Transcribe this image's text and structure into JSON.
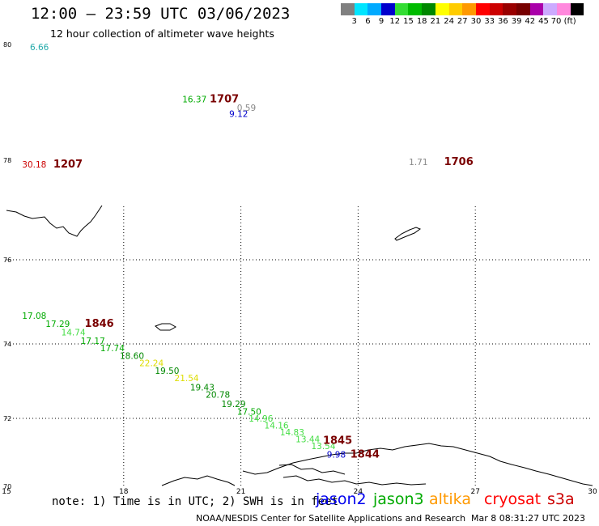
{
  "header": {
    "title": "12:00 — 23:59 UTC 03/06/2023",
    "subtitle": "12 hour collection of altimeter wave heights"
  },
  "legend": {
    "colors": [
      "#808080",
      "#00e5ff",
      "#00aaff",
      "#0000cc",
      "#33dd33",
      "#00bb00",
      "#008800",
      "#ffff00",
      "#ffcc00",
      "#ff9900",
      "#ff0000",
      "#cc0000",
      "#990000",
      "#770000",
      "#aa00aa",
      "#ccaaff",
      "#ff88dd",
      "#000000"
    ],
    "labels": [
      "3",
      "6",
      "9",
      "12",
      "15",
      "18",
      "21",
      "24",
      "27",
      "30",
      "33",
      "36",
      "39",
      "42",
      "45",
      "70 (ft)"
    ]
  },
  "axes": {
    "lon_ticks": [
      "15",
      "18",
      "21",
      "24",
      "27",
      "30"
    ],
    "lat_ticks": [
      "70",
      "72",
      "74",
      "76",
      "78",
      "80"
    ]
  },
  "chart_data": {
    "type": "scatter",
    "points": [
      {
        "lon": 15.6,
        "lat": 79.9,
        "text": "6.66",
        "color": "#22aaaa"
      },
      {
        "lon": 19.5,
        "lat": 79.0,
        "text": "16.37",
        "color": "#00aa00"
      },
      {
        "lon": 20.7,
        "lat": 78.75,
        "text": "9.12",
        "color": "#0000cc"
      },
      {
        "lon": 20.9,
        "lat": 78.85,
        "text": "0.59",
        "color": "#888888"
      },
      {
        "lon": 15.4,
        "lat": 77.85,
        "text": "30.18",
        "color": "#cc0000"
      },
      {
        "lon": 25.3,
        "lat": 77.9,
        "text": "1.71",
        "color": "#888888"
      },
      {
        "lon": 15.4,
        "lat": 74.6,
        "text": "17.08",
        "color": "#00aa00"
      },
      {
        "lon": 16.0,
        "lat": 74.4,
        "text": "17.29",
        "color": "#00aa00"
      },
      {
        "lon": 16.4,
        "lat": 74.2,
        "text": "14.74",
        "color": "#44dd44"
      },
      {
        "lon": 16.9,
        "lat": 74.0,
        "text": "17.17",
        "color": "#00aa00"
      },
      {
        "lon": 17.4,
        "lat": 73.8,
        "text": "17.74",
        "color": "#00aa00"
      },
      {
        "lon": 17.9,
        "lat": 73.6,
        "text": "18.60",
        "color": "#008800"
      },
      {
        "lon": 18.4,
        "lat": 73.4,
        "text": "22.24",
        "color": "#dddd00"
      },
      {
        "lon": 18.8,
        "lat": 73.2,
        "text": "19.50",
        "color": "#008800"
      },
      {
        "lon": 19.3,
        "lat": 73.0,
        "text": "21.54",
        "color": "#dddd00"
      },
      {
        "lon": 19.7,
        "lat": 72.75,
        "text": "19.43",
        "color": "#008800"
      },
      {
        "lon": 20.1,
        "lat": 72.55,
        "text": "20.78",
        "color": "#008800"
      },
      {
        "lon": 20.5,
        "lat": 72.3,
        "text": "19.29",
        "color": "#008800"
      },
      {
        "lon": 20.9,
        "lat": 72.1,
        "text": "17.50",
        "color": "#00aa00"
      },
      {
        "lon": 21.2,
        "lat": 71.9,
        "text": "14.96",
        "color": "#44dd44"
      },
      {
        "lon": 21.6,
        "lat": 71.7,
        "text": "14.16",
        "color": "#44dd44"
      },
      {
        "lon": 22.0,
        "lat": 71.5,
        "text": "14.83",
        "color": "#44dd44"
      },
      {
        "lon": 22.4,
        "lat": 71.3,
        "text": "13.44",
        "color": "#44dd44"
      },
      {
        "lon": 22.8,
        "lat": 71.1,
        "text": "13.54",
        "color": "#44dd44"
      },
      {
        "lon": 23.2,
        "lat": 70.85,
        "text": "9.98",
        "color": "#0000cc"
      }
    ],
    "passes": [
      {
        "lon": 20.2,
        "lat": 79.0,
        "text": "1707"
      },
      {
        "lon": 16.2,
        "lat": 77.85,
        "text": "1207"
      },
      {
        "lon": 26.2,
        "lat": 77.9,
        "text": "1706"
      },
      {
        "lon": 17.0,
        "lat": 74.4,
        "text": "1846"
      },
      {
        "lon": 23.1,
        "lat": 71.25,
        "text": "1845"
      },
      {
        "lon": 23.8,
        "lat": 70.85,
        "text": "1844"
      }
    ]
  },
  "footer": {
    "note": "note: 1) Time is in UTC; 2) SWH is in feet",
    "satellites": [
      {
        "name": "jason2",
        "color": "#0000ee"
      },
      {
        "name": "jason3",
        "color": "#00aa00"
      },
      {
        "name": "altika",
        "color": "#ff9900"
      },
      {
        "name": "cryosat",
        "color": "#ff0000"
      },
      {
        "name": "s3a",
        "color": "#cc0000"
      }
    ],
    "credit": "NOAA/NESDIS Center for Satellite Applications and Research",
    "date": "Mar  8 08:31:27 UTC 2023"
  }
}
